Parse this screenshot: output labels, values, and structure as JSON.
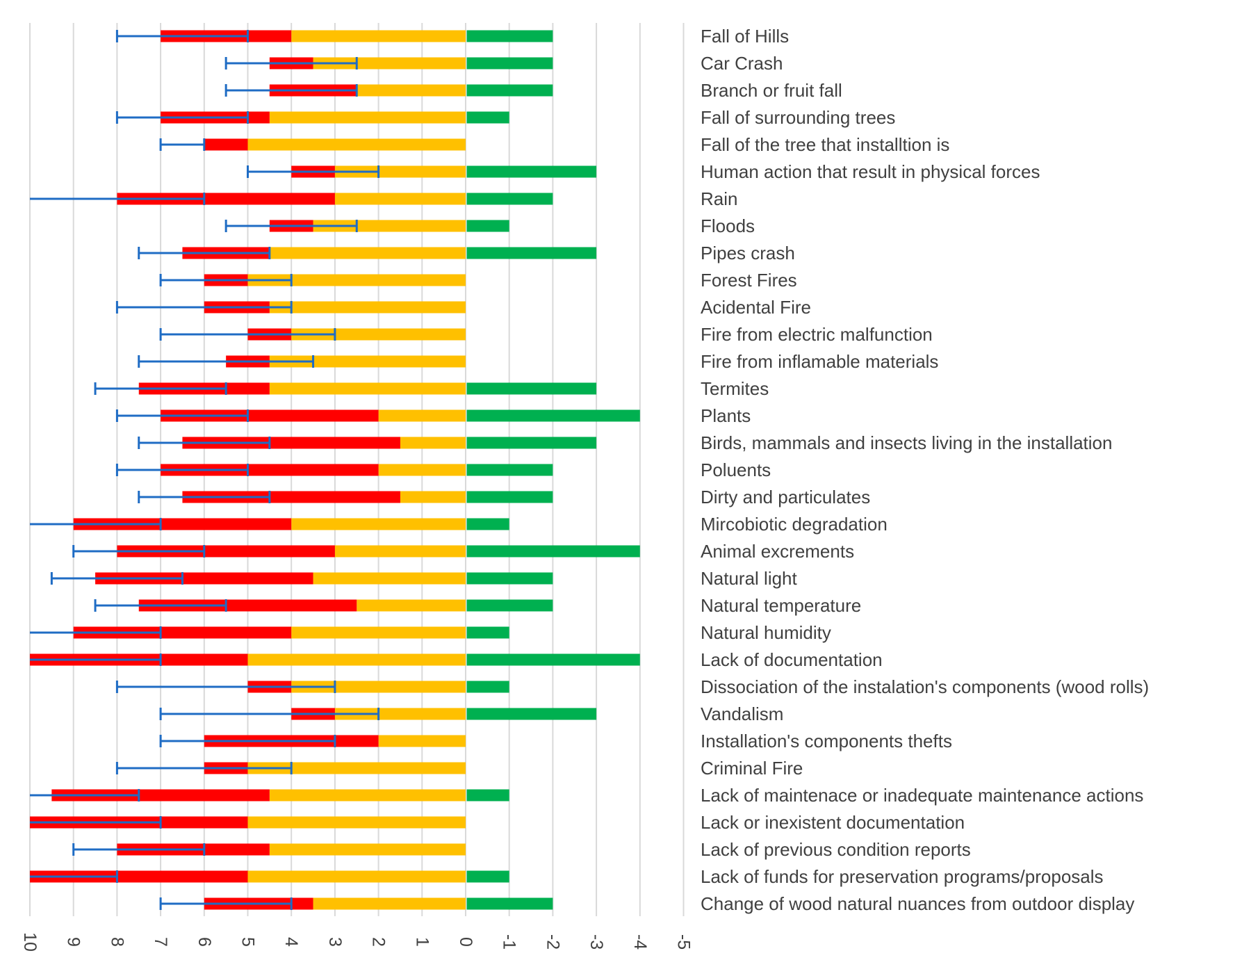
{
  "chart_data": {
    "type": "bar",
    "orientation": "horizontal-stacked",
    "title": "",
    "xlabel": "",
    "ylabel": "",
    "xlim": [
      10,
      -5
    ],
    "x_reversed": true,
    "x_ticks": [
      "10",
      "9",
      "8",
      "7",
      "6",
      "5",
      "4",
      "3",
      "2",
      "1",
      "0",
      "-1",
      "-2",
      "-3",
      "-4",
      "-5"
    ],
    "grid": "vertical",
    "legend": "none",
    "colors": {
      "positive_base": "#FFC000",
      "positive_extra": "#FF0000",
      "negative": "#00B050",
      "error_bar": "#1F6CC4",
      "grid": "#D9D9D9",
      "text": "#404040"
    },
    "series_notes": {
      "yellow": "base positive value (0 to yellow_end)",
      "red": "extension from yellow_end to red_end",
      "green": "negative value",
      "error": "error bar from error_center extending by error_plus"
    },
    "categories": [
      "Fall of Hills",
      "Car Crash",
      "Branch or fruit fall",
      "Fall of surrounding trees",
      "Fall of the tree that installtion is",
      "Human action that result in physical forces",
      "Rain",
      "Floods",
      "Pipes crash",
      "Forest Fires",
      "Acidental Fire",
      "Fire from electric malfunction",
      "Fire from inflamable materials",
      "Termites",
      "Plants",
      "Birds, mammals and insects living in the installation",
      "Poluents",
      "Dirty and particulates",
      "Mircobiotic degradation",
      "Animal excrements",
      "Natural light",
      "Natural temperature",
      "Natural humidity",
      "Lack of documentation",
      "Dissociation of the instalation's components (wood rolls)",
      "Vandalism",
      "Installation's components thefts",
      "Criminal Fire",
      "Lack of maintenace or inadequate maintenance actions",
      "Lack or inexistent documentation",
      "Lack of previous condition reports",
      "Lack of funds for preservation programs/proposals",
      "Change of wood natural nuances from outdoor display"
    ],
    "series": [
      {
        "name": "yellow_end",
        "values": [
          4,
          3.5,
          2.5,
          4.5,
          5,
          3,
          3,
          3.5,
          4.5,
          5,
          4.5,
          4,
          4.5,
          4.5,
          2,
          1.5,
          2,
          1.5,
          4,
          3,
          3.5,
          2.5,
          4,
          5,
          4,
          3,
          2,
          5,
          4.5,
          5,
          4.5,
          5,
          3.5
        ]
      },
      {
        "name": "red_end",
        "values": [
          7,
          4.5,
          4.5,
          7,
          6,
          4,
          8,
          4.5,
          6.5,
          6,
          6,
          5,
          5.5,
          7.5,
          7,
          6.5,
          7,
          6.5,
          9,
          8,
          8.5,
          7.5,
          9,
          10,
          5,
          4,
          6,
          6,
          9.5,
          10,
          8,
          10,
          6
        ]
      },
      {
        "name": "green",
        "values": [
          -2,
          -2,
          -2,
          -1,
          0,
          -3,
          -2,
          -1,
          -3,
          0,
          0,
          0,
          0,
          -3,
          -4,
          -3,
          -2,
          -2,
          -1,
          -4,
          -2,
          -2,
          -1,
          -4,
          -1,
          -3,
          0,
          0,
          -1,
          0,
          0,
          -1,
          -2
        ]
      },
      {
        "name": "error_low",
        "values": [
          5,
          2.5,
          2.5,
          5,
          6,
          2,
          6,
          2.5,
          4.5,
          4,
          4,
          3,
          3.5,
          5.5,
          5,
          4.5,
          5,
          4.5,
          7,
          6,
          6.5,
          5.5,
          7,
          7,
          3,
          2,
          3,
          4,
          7.5,
          7,
          6,
          8,
          4
        ]
      },
      {
        "name": "error_high",
        "values": [
          8,
          5.5,
          5.5,
          8,
          7,
          5,
          10,
          5.5,
          7.5,
          7,
          8,
          7,
          7.5,
          8.5,
          8,
          7.5,
          8,
          7.5,
          10,
          9,
          9.5,
          8.5,
          10,
          10,
          8,
          7,
          7,
          8,
          10,
          10,
          9,
          10,
          7
        ]
      }
    ]
  }
}
